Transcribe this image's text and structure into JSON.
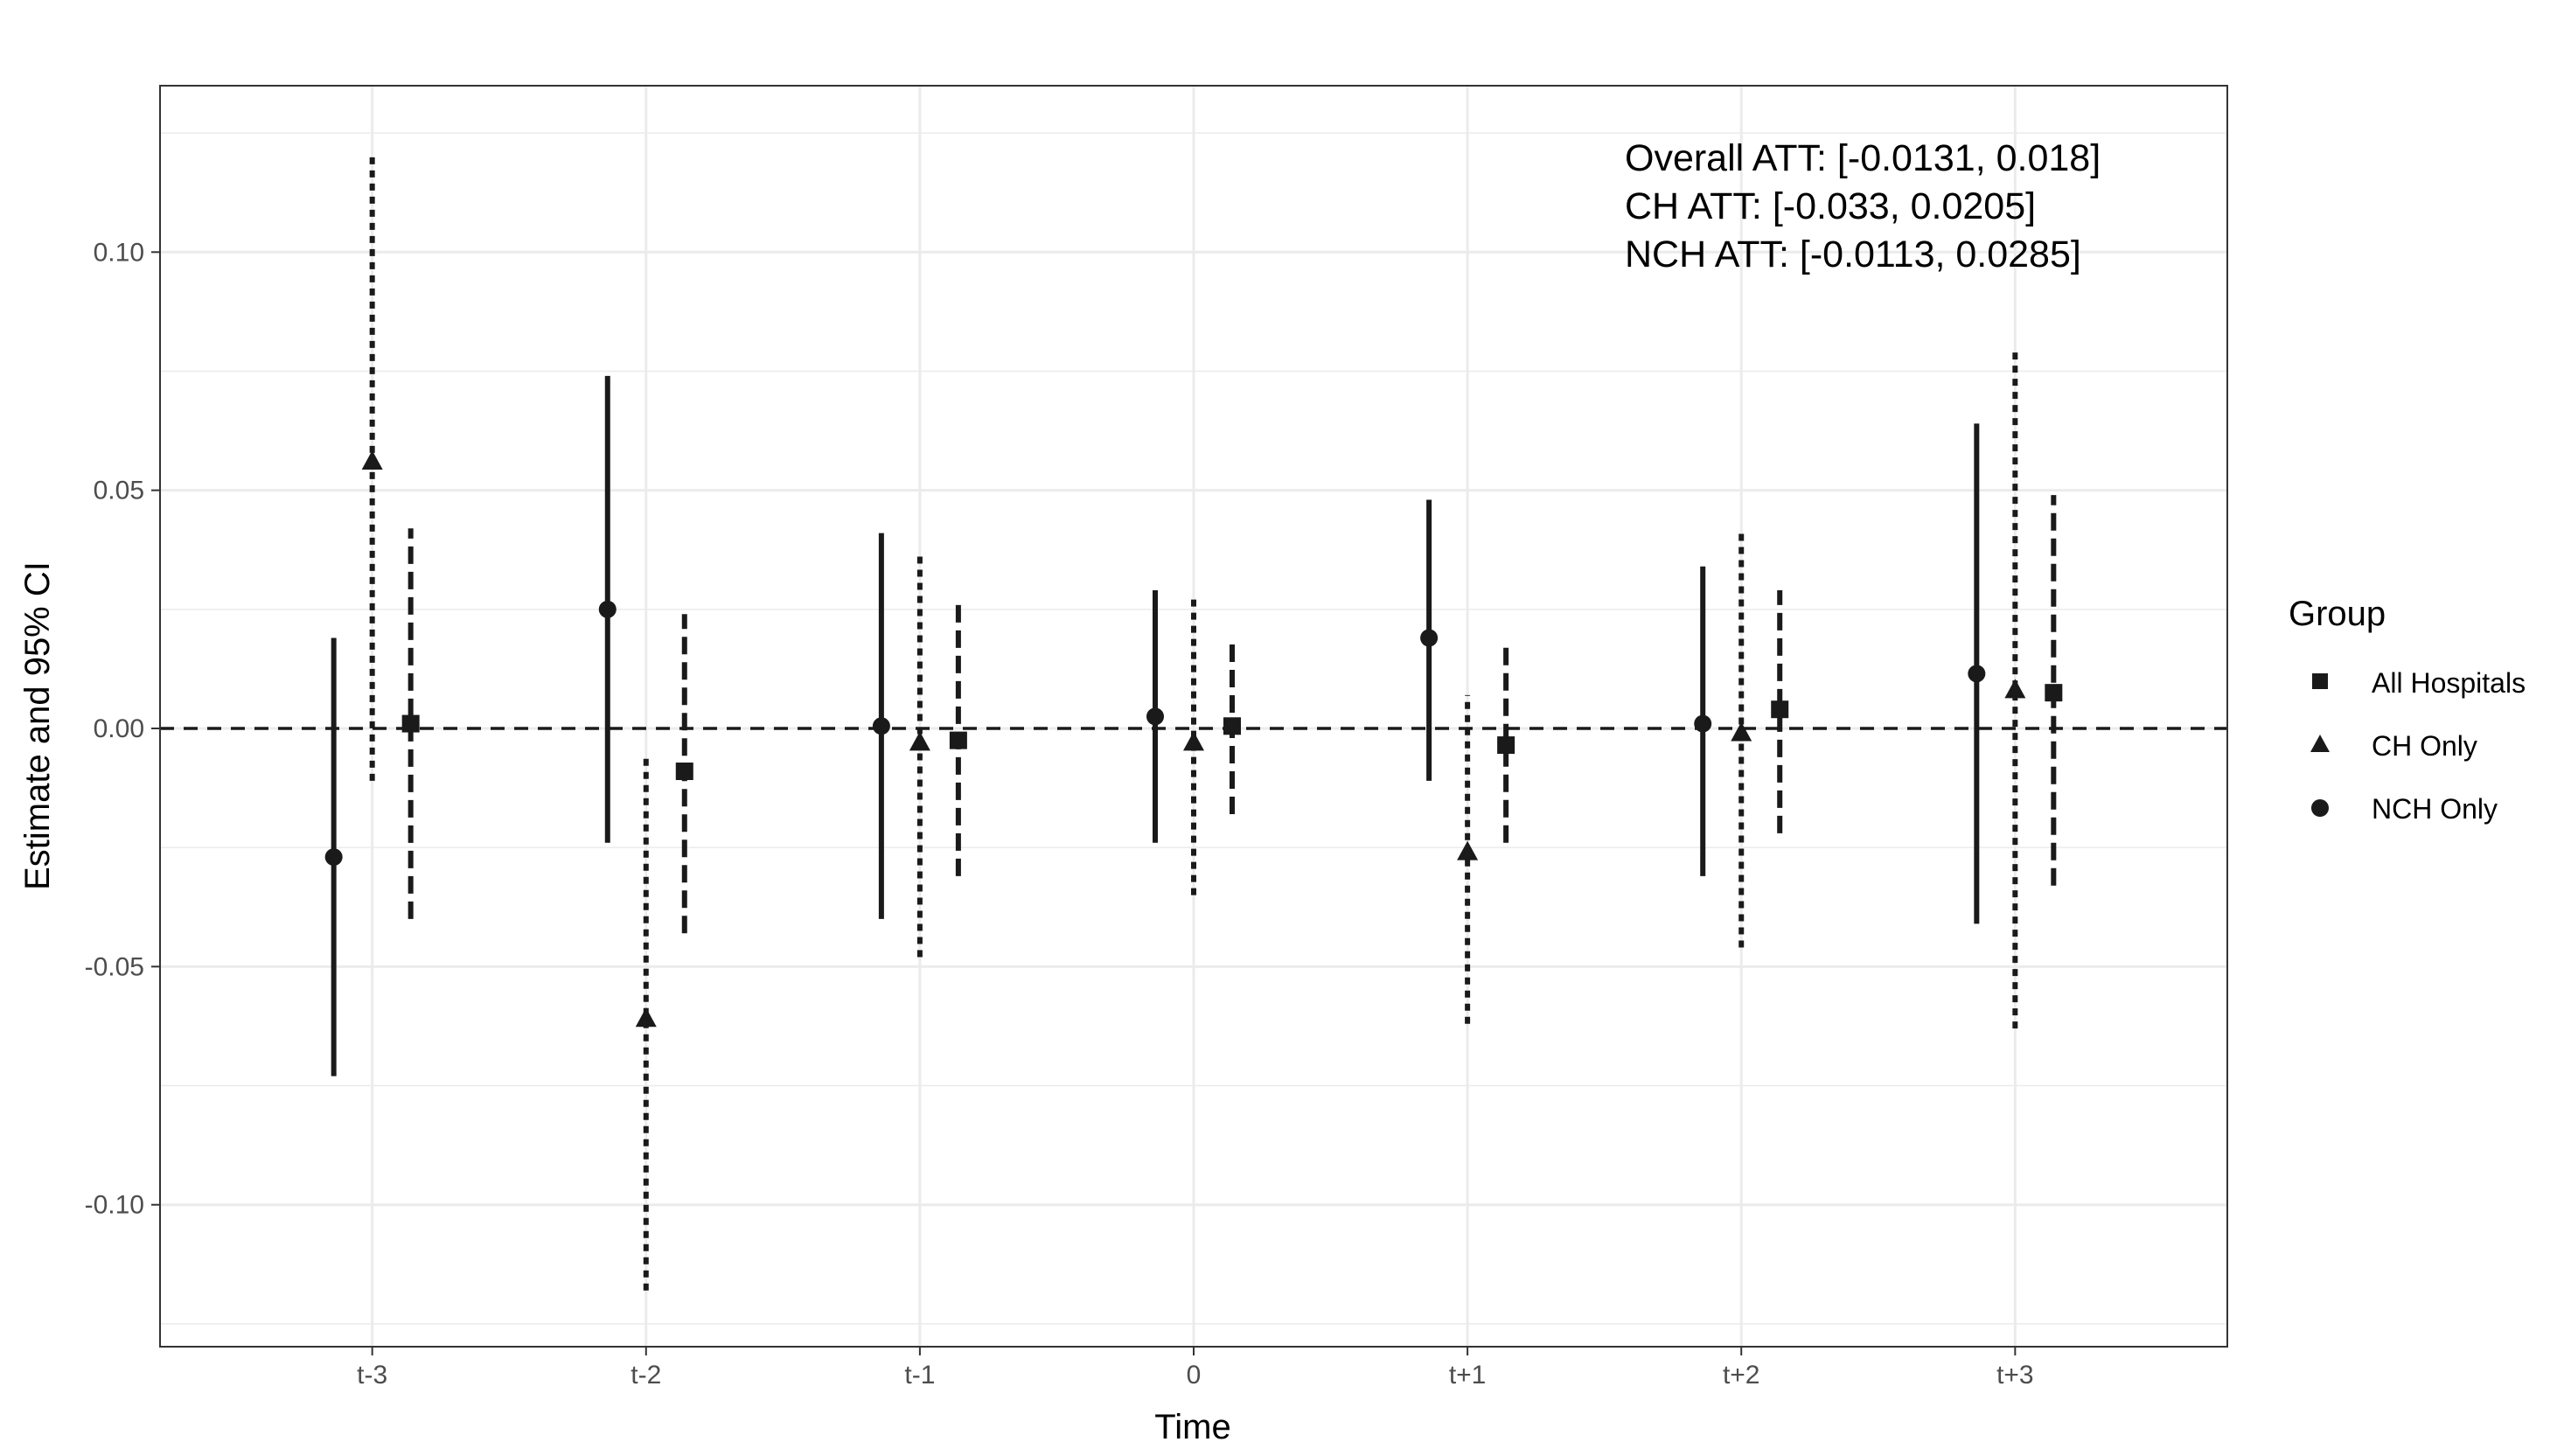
{
  "chart_data": {
    "type": "scatter",
    "subtype": "point-range (estimate with 95% CI)",
    "title": "",
    "xlabel": "Time",
    "ylabel": "Estimate and 95% CI",
    "categories": [
      "t-3",
      "t-2",
      "t-1",
      "0",
      "t+1",
      "t+2",
      "t+3"
    ],
    "ylim": [
      -0.125,
      0.135
    ],
    "yticks": [
      -0.1,
      -0.05,
      0.0,
      0.05,
      0.1
    ],
    "ytick_labels": [
      "-0.10",
      "-0.05",
      "0.00",
      "0.05",
      "0.10"
    ],
    "grid": true,
    "reference_line": {
      "y": 0,
      "style": "dashed"
    },
    "legend": {
      "title": "Group",
      "position": "right",
      "entries": [
        {
          "label": "All Hospitals",
          "shape": "square"
        },
        {
          "label": "CH Only",
          "shape": "triangle"
        },
        {
          "label": "NCH Only",
          "shape": "circle"
        }
      ]
    },
    "series": [
      {
        "name": "NCH Only",
        "shape": "circle",
        "linetype": "solid",
        "estimate": [
          -0.027,
          0.025,
          0.0005,
          0.0025,
          0.019,
          0.001,
          0.0115
        ],
        "lower": [
          -0.073,
          -0.024,
          -0.04,
          -0.024,
          -0.011,
          -0.031,
          -0.041
        ],
        "upper": [
          0.019,
          0.074,
          0.041,
          0.029,
          0.048,
          0.034,
          0.064
        ]
      },
      {
        "name": "CH Only",
        "shape": "triangle",
        "linetype": "dotted",
        "estimate": [
          0.056,
          -0.061,
          -0.003,
          -0.003,
          -0.026,
          -0.001,
          0.008
        ],
        "lower": [
          -0.011,
          -0.118,
          -0.048,
          -0.035,
          -0.062,
          -0.046,
          -0.063
        ],
        "upper": [
          0.121,
          -0.006,
          0.037,
          0.028,
          0.007,
          0.042,
          0.079
        ]
      },
      {
        "name": "All Hospitals",
        "shape": "square",
        "linetype": "dashed",
        "estimate": [
          0.001,
          -0.009,
          -0.0025,
          0.0005,
          -0.0035,
          0.004,
          0.0075
        ],
        "lower": [
          -0.04,
          -0.043,
          -0.031,
          -0.018,
          -0.024,
          -0.022,
          -0.033
        ],
        "upper": [
          0.042,
          0.024,
          0.026,
          0.018,
          0.017,
          0.029,
          0.049
        ]
      }
    ],
    "annotations": [
      "Overall ATT: [-0.0131, 0.018]",
      "CH ATT: [-0.033, 0.0205]",
      "NCH ATT: [-0.0113, 0.0285]"
    ],
    "colors": {
      "marks": "#1a1a1a",
      "grid": "#ebebeb",
      "panel_border": "#333333"
    }
  }
}
